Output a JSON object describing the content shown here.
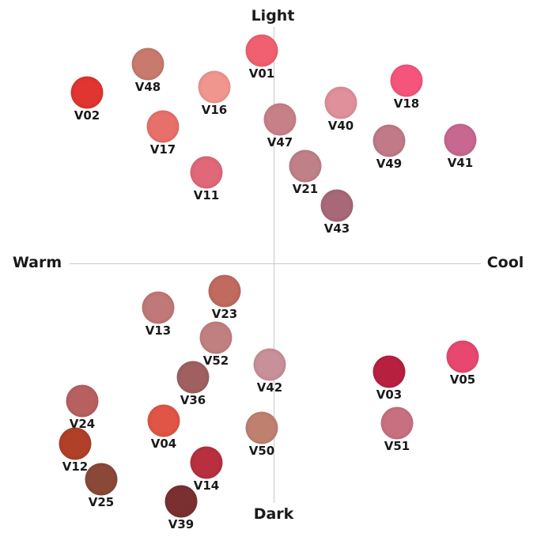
{
  "axes": {
    "top": "Light",
    "bottom": "Dark",
    "left": "Warm",
    "right": "Cool"
  },
  "shades": [
    {
      "label": "V01",
      "color": "#f06070"
    },
    {
      "label": "V48",
      "color": "#c87a6e"
    },
    {
      "label": "V02",
      "color": "#e03530"
    },
    {
      "label": "V16",
      "color": "#f0968e"
    },
    {
      "label": "V18",
      "color": "#f5557a"
    },
    {
      "label": "V17",
      "color": "#e8706a"
    },
    {
      "label": "V47",
      "color": "#c88088"
    },
    {
      "label": "V40",
      "color": "#e0909a"
    },
    {
      "label": "V49",
      "color": "#c07a88"
    },
    {
      "label": "V41",
      "color": "#c86890"
    },
    {
      "label": "V11",
      "color": "#e06878"
    },
    {
      "label": "V21",
      "color": "#c08088"
    },
    {
      "label": "V43",
      "color": "#a86878"
    },
    {
      "label": "V23",
      "color": "#c06a60"
    },
    {
      "label": "V13",
      "color": "#c07878"
    },
    {
      "label": "V52",
      "color": "#c08080"
    },
    {
      "label": "V42",
      "color": "#c89098"
    },
    {
      "label": "V36",
      "color": "#a06060"
    },
    {
      "label": "V03",
      "color": "#b82040"
    },
    {
      "label": "V05",
      "color": "#e84870"
    },
    {
      "label": "V24",
      "color": "#b86060"
    },
    {
      "label": "V04",
      "color": "#e05545"
    },
    {
      "label": "V50",
      "color": "#c08070"
    },
    {
      "label": "V51",
      "color": "#c87080"
    },
    {
      "label": "V12",
      "color": "#b04028"
    },
    {
      "label": "V14",
      "color": "#b83040"
    },
    {
      "label": "V25",
      "color": "#8a4838"
    },
    {
      "label": "V39",
      "color": "#7a3030"
    }
  ]
}
